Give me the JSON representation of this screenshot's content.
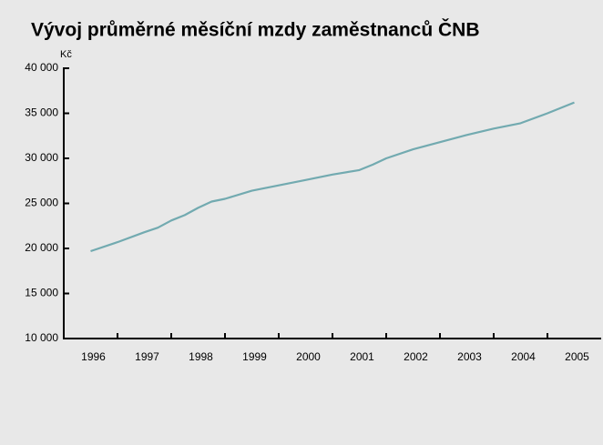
{
  "chart_data": {
    "type": "line",
    "title": "Vývoj průměrné měsíční mzdy zaměstnanců ČNB",
    "y_label": "Kč",
    "categories": [
      "1996",
      "1997",
      "1998",
      "1999",
      "2000",
      "2001",
      "2002",
      "2003",
      "2004",
      "2005"
    ],
    "xlim": [
      1996,
      2006
    ],
    "x": [
      1996.5,
      1997.0,
      1997.5,
      1997.75,
      1998.0,
      1998.25,
      1998.5,
      1998.75,
      1999.0,
      1999.5,
      2000.0,
      2000.5,
      2001.0,
      2001.5,
      2001.75,
      2002.0,
      2002.5,
      2003.0,
      2003.5,
      2004.0,
      2004.5,
      2005.0,
      2005.5
    ],
    "series": [
      {
        "color": "#72aab0",
        "values": [
          19700,
          20700,
          21800,
          22300,
          23100,
          23700,
          24500,
          25200,
          25500,
          26400,
          27000,
          27600,
          28200,
          28700,
          29300,
          30000,
          31000,
          31800,
          32600,
          33300,
          33900,
          35000,
          36200
        ]
      }
    ],
    "ylim": [
      10000,
      40000
    ],
    "yticks": [
      {
        "value": 10000,
        "label": "10 000"
      },
      {
        "value": 15000,
        "label": "15 000"
      },
      {
        "value": 20000,
        "label": "20 000"
      },
      {
        "value": 25000,
        "label": "25 000"
      },
      {
        "value": 30000,
        "label": "30 000"
      },
      {
        "value": 35000,
        "label": "35 000"
      },
      {
        "value": 40000,
        "label": "40 000"
      }
    ]
  }
}
